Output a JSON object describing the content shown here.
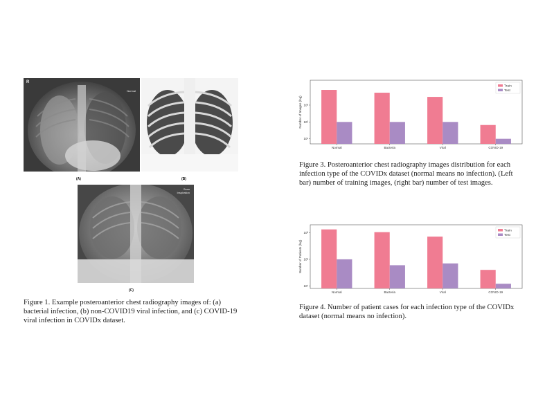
{
  "figure1": {
    "panels": [
      {
        "label": "(A)",
        "corner_mark": "R",
        "tag": "Normal"
      },
      {
        "label": "(B)"
      },
      {
        "label": "(C)",
        "tag": "Scan Inspiration"
      }
    ],
    "caption": "Figure 1. Example posteroanterior chest radiography images of: (a) bacterial infection, (b) non-COVID19 viral infection, and (c) COVID-19 viral infection in COVIDx dataset."
  },
  "figure3": {
    "caption": "Figure 3. Posteroanterior chest radiography images distribution for each infection type of the COVIDx dataset (normal means no infection). (Left bar) number of training images, (right bar) number of test images."
  },
  "figure4": {
    "caption": "Figure 4. Number of patient cases for each infection type of the COVIDx dataset (normal means no infection)."
  },
  "colors": {
    "train": "#f07c92",
    "test": "#a98bc4"
  },
  "chart_data": [
    {
      "type": "bar",
      "scale": "log",
      "categories": [
        "Normal",
        "Bacteria",
        "Viral",
        "COVID-19"
      ],
      "series": [
        {
          "name": "Train",
          "values": [
            7966,
            5451,
            3080,
            66
          ]
        },
        {
          "name": "Test",
          "values": [
            100,
            100,
            100,
            10
          ]
        }
      ],
      "ylabel": "Number of Images (log)",
      "yticks": [
        {
          "value": 10,
          "label": "10¹"
        },
        {
          "value": 100,
          "label": "10²"
        },
        {
          "value": 1000,
          "label": "10³"
        }
      ],
      "ylim": [
        5,
        30000
      ],
      "legend": "top-right"
    },
    {
      "type": "bar",
      "scale": "log",
      "categories": [
        "Normal",
        "Bacteria",
        "Viral",
        "COVID-19"
      ],
      "series": [
        {
          "name": "Train",
          "values": [
            1341,
            1058,
            718,
            40
          ]
        },
        {
          "name": "Test",
          "values": [
            100,
            60,
            70,
            12
          ]
        }
      ],
      "ylabel": "Number of Patients (log)",
      "yticks": [
        {
          "value": 10,
          "label": "10¹"
        },
        {
          "value": 100,
          "label": "10²"
        },
        {
          "value": 1000,
          "label": "10³"
        }
      ],
      "ylim": [
        8,
        2000
      ],
      "legend": "top-right"
    }
  ]
}
